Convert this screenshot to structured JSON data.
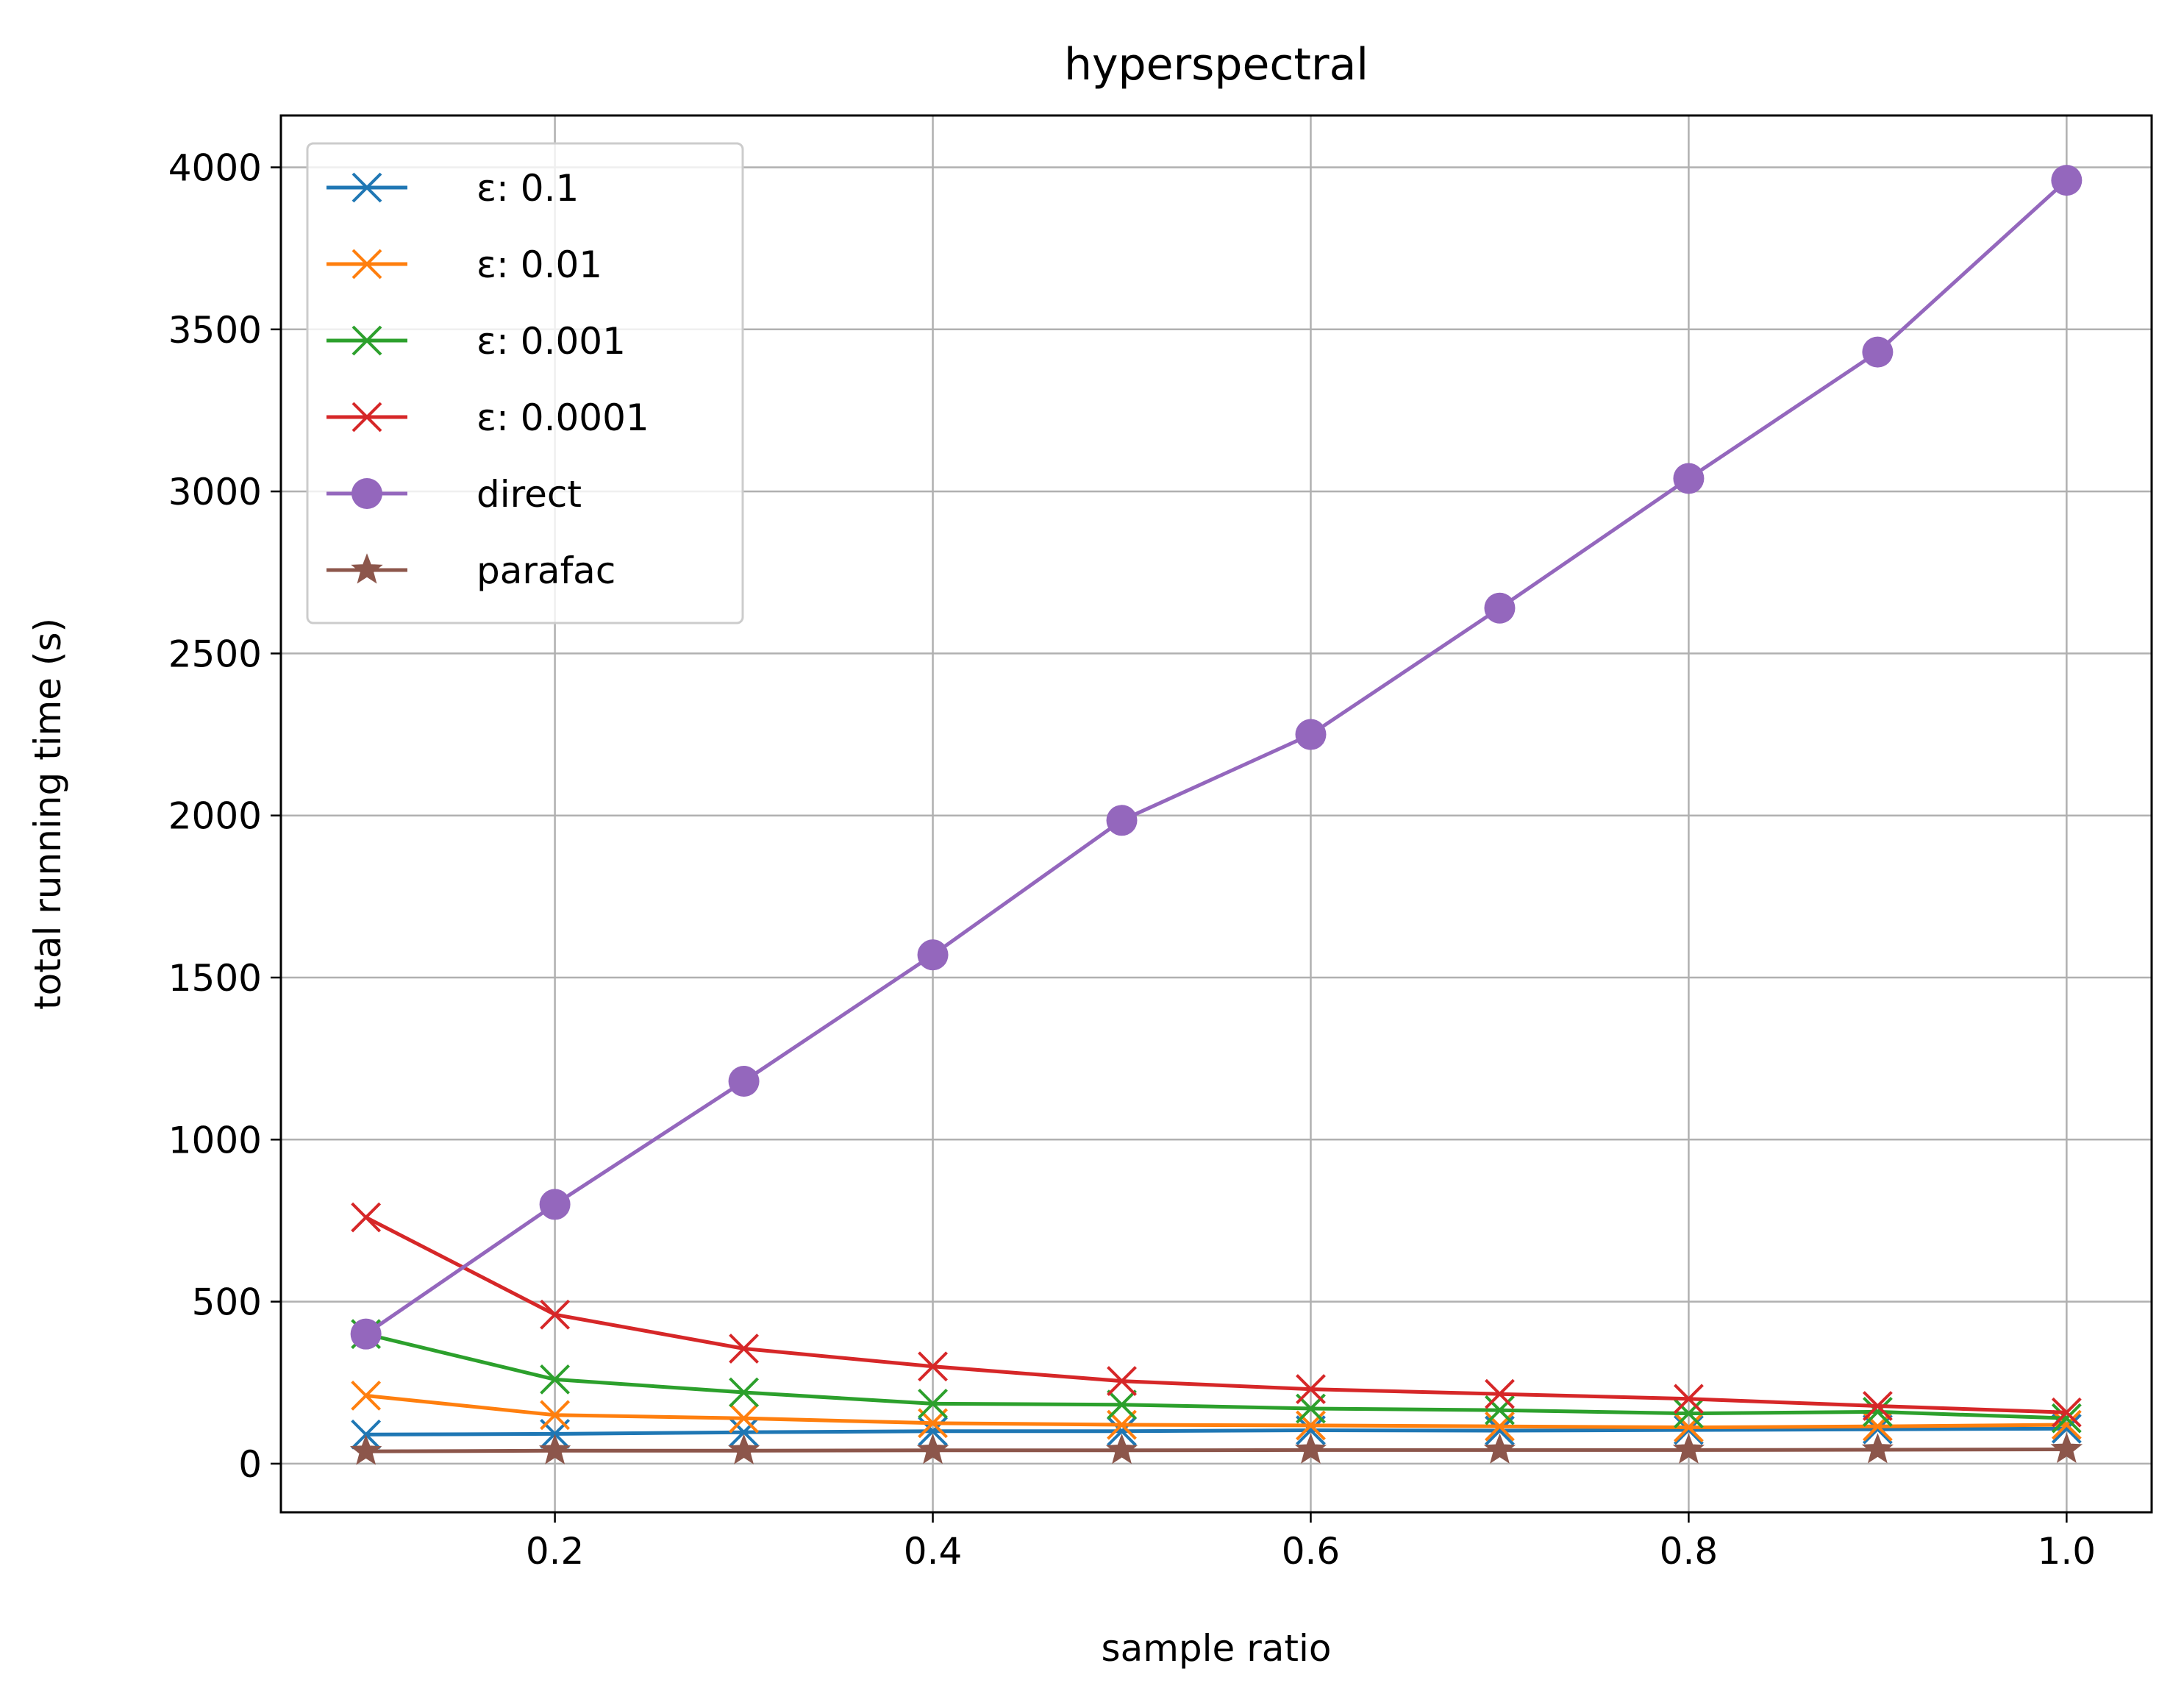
{
  "chart_data": {
    "type": "line",
    "title": "hyperspectral",
    "xlabel": "sample ratio",
    "ylabel": "total running time (s)",
    "xlim": [
      0.055,
      1.045
    ],
    "ylim": [
      -150,
      4160
    ],
    "xticks": [
      0.2,
      0.4,
      0.6,
      0.8,
      1.0
    ],
    "xtick_labels": [
      "0.2",
      "0.4",
      "0.6",
      "0.8",
      "1.0"
    ],
    "yticks": [
      0,
      500,
      1000,
      1500,
      2000,
      2500,
      3000,
      3500,
      4000
    ],
    "ytick_labels": [
      "0",
      "500",
      "1000",
      "1500",
      "2000",
      "2500",
      "3000",
      "3500",
      "4000"
    ],
    "grid": true,
    "legend_position": "top-left",
    "x": [
      0.1,
      0.2,
      0.3,
      0.4,
      0.5,
      0.6,
      0.7,
      0.8,
      0.9,
      1.0
    ],
    "series": [
      {
        "name": "ε: 0.1",
        "color": "#1f77b4",
        "marker": "x",
        "values": [
          90,
          92,
          97,
          100,
          100,
          103,
          102,
          104,
          106,
          108
        ]
      },
      {
        "name": "ε: 0.01",
        "color": "#ff7f0e",
        "marker": "x",
        "values": [
          210,
          150,
          140,
          125,
          120,
          118,
          115,
          112,
          115,
          120
        ]
      },
      {
        "name": "ε: 0.001",
        "color": "#2ca02c",
        "marker": "x",
        "values": [
          400,
          260,
          220,
          185,
          182,
          170,
          165,
          155,
          160,
          140
        ]
      },
      {
        "name": "ε: 0.0001",
        "color": "#d62728",
        "marker": "x",
        "values": [
          760,
          460,
          355,
          300,
          255,
          230,
          215,
          200,
          178,
          158
        ]
      },
      {
        "name": "direct",
        "color": "#9467bd",
        "marker": "circle",
        "values": [
          400,
          800,
          1180,
          1570,
          1985,
          2250,
          2640,
          3040,
          3430,
          3960
        ]
      },
      {
        "name": "parafac",
        "color": "#8c564b",
        "marker": "star",
        "values": [
          38,
          40,
          40,
          41,
          41,
          42,
          42,
          42,
          43,
          44
        ]
      }
    ]
  }
}
